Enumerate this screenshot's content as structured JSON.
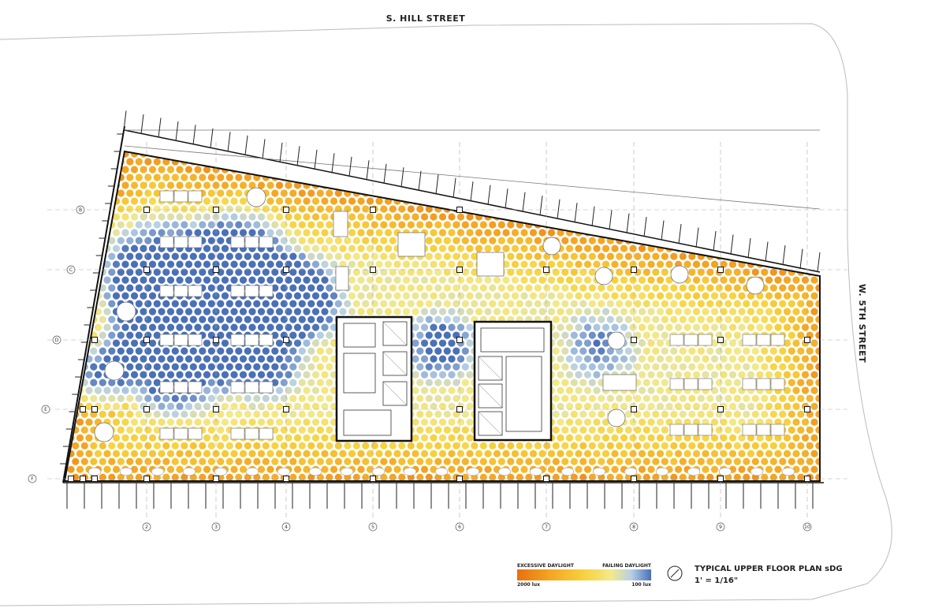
{
  "streets": {
    "north": "S. HILL STREET",
    "east": "W. 5TH STREET"
  },
  "grid": {
    "rows": [
      "B",
      "C",
      "D",
      "E",
      "F"
    ],
    "columns": [
      "2",
      "3",
      "4",
      "5",
      "6",
      "7",
      "8",
      "9",
      "10"
    ]
  },
  "legend": {
    "left_label": "EXCESSIVE DAYLIGHT",
    "right_label": "FAILING DAYLIGHT",
    "left_value": "2000 lux",
    "right_value": "100 lux",
    "colors": [
      "#e8700f",
      "#f5a623",
      "#f7d23e",
      "#f3e98a",
      "#b7d0e6",
      "#4a70b8"
    ]
  },
  "title": {
    "main": "TYPICAL UPPER FLOOR PLAN sDG",
    "scale": "1' = 1/16\""
  },
  "icons": {
    "north_arrow": "north-arrow-icon"
  }
}
